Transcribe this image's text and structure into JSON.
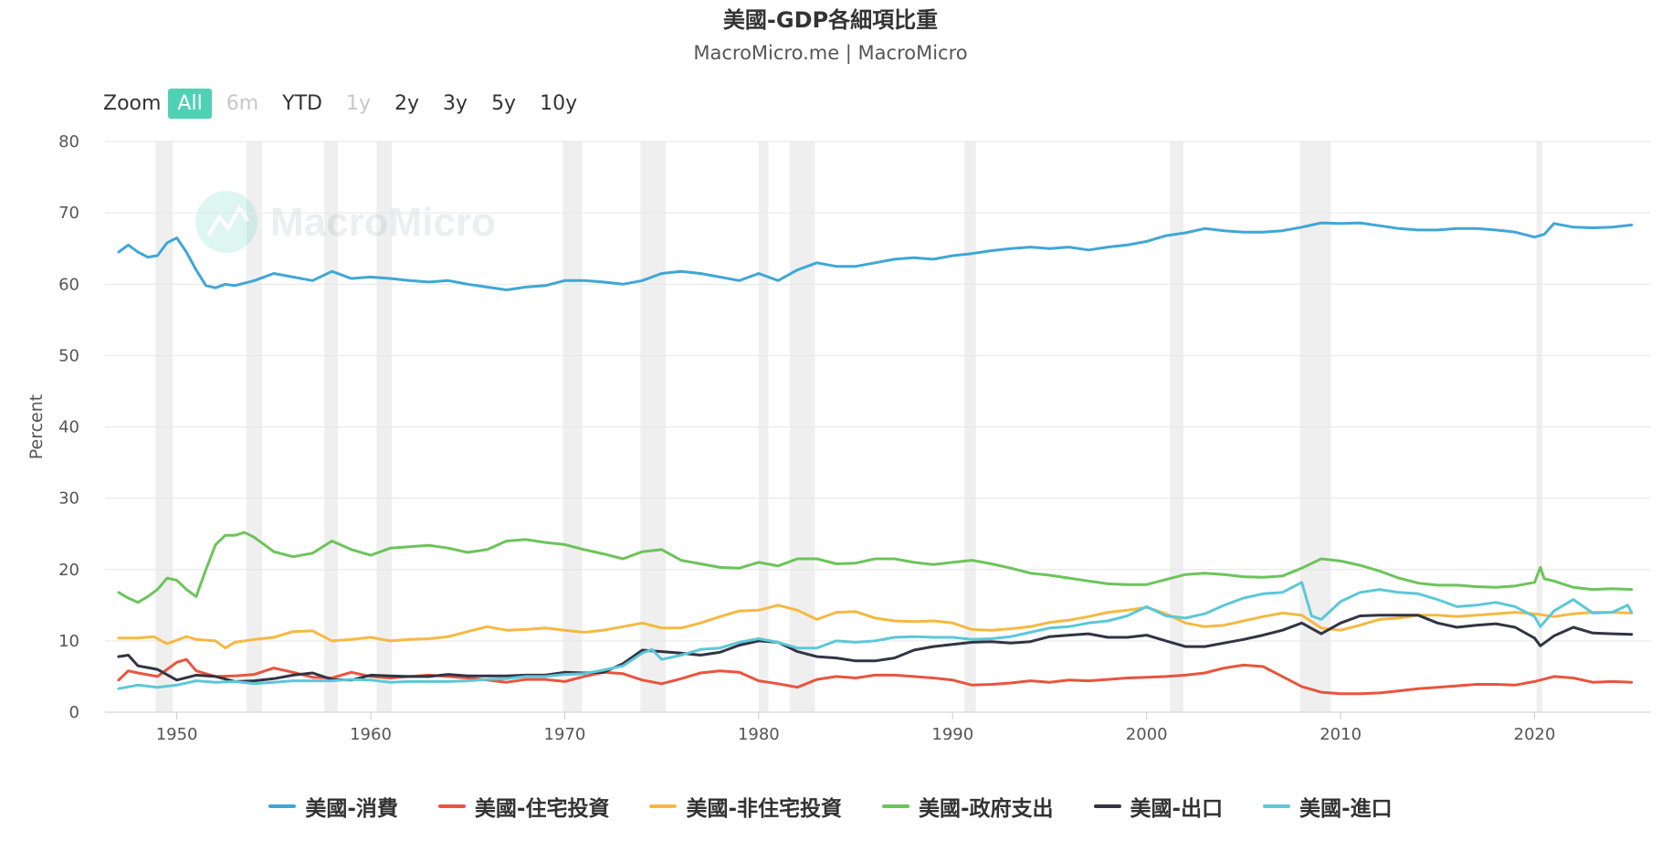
{
  "title": "美國-GDP各細項比重",
  "subtitle": "MacroMicro.me | MacroMicro",
  "watermark": "MacroMicro",
  "zoom": {
    "label": "Zoom",
    "buttons": [
      {
        "label": "All",
        "state": "active"
      },
      {
        "label": "6m",
        "state": "disabled"
      },
      {
        "label": "YTD",
        "state": "normal"
      },
      {
        "label": "1y",
        "state": "disabled"
      },
      {
        "label": "2y",
        "state": "normal"
      },
      {
        "label": "3y",
        "state": "normal"
      },
      {
        "label": "5y",
        "state": "normal"
      },
      {
        "label": "10y",
        "state": "normal"
      }
    ]
  },
  "chart_data": {
    "type": "line",
    "ylabel": "Percent",
    "xlim": [
      1946.3,
      2026.0
    ],
    "ylim": [
      0,
      80
    ],
    "y_ticks": [
      0,
      10,
      20,
      30,
      40,
      50,
      60,
      70,
      80
    ],
    "x_ticks": [
      1950,
      1960,
      1970,
      1980,
      1990,
      2000,
      2010,
      2020
    ],
    "grid": true,
    "legend": "bottom",
    "recessions": [
      [
        1948.9,
        1949.8
      ],
      [
        1953.6,
        1954.4
      ],
      [
        1957.6,
        1958.3
      ],
      [
        1960.3,
        1961.1
      ],
      [
        1969.9,
        1970.9
      ],
      [
        1973.9,
        1975.2
      ],
      [
        1980.0,
        1980.5
      ],
      [
        1981.6,
        1982.9
      ],
      [
        1990.6,
        1991.2
      ],
      [
        2001.2,
        2001.9
      ],
      [
        2007.9,
        2009.5
      ],
      [
        2020.1,
        2020.4
      ]
    ],
    "series": [
      {
        "name": "美國-消費",
        "color": "#3fa7d6",
        "x": [
          1947,
          1947.5,
          1948,
          1948.5,
          1949,
          1949.5,
          1950,
          1950.5,
          1951,
          1951.5,
          1952,
          1952.5,
          1953,
          1954,
          1955,
          1957,
          1958,
          1959,
          1960,
          1961,
          1962,
          1963,
          1964,
          1965,
          1966,
          1967,
          1968,
          1969,
          1970,
          1971,
          1972,
          1973,
          1974,
          1975,
          1976,
          1977,
          1978,
          1979,
          1980,
          1981,
          1982,
          1983,
          1984,
          1985,
          1986,
          1987,
          1988,
          1989,
          1990,
          1991,
          1992,
          1993,
          1994,
          1995,
          1996,
          1997,
          1998,
          1999,
          2000,
          2001,
          2002,
          2003,
          2004,
          2005,
          2006,
          2007,
          2008,
          2009,
          2010,
          2011,
          2012,
          2013,
          2014,
          2015,
          2016,
          2017,
          2018,
          2019,
          2020,
          2020.5,
          2021,
          2022,
          2023,
          2024,
          2025
        ],
        "y": [
          64.5,
          65.5,
          64.5,
          63.8,
          64.0,
          65.8,
          66.5,
          64.5,
          62.0,
          59.8,
          59.5,
          60.0,
          59.8,
          60.5,
          61.5,
          60.5,
          61.8,
          60.8,
          61.0,
          60.8,
          60.5,
          60.3,
          60.5,
          60.0,
          59.6,
          59.2,
          59.6,
          59.8,
          60.5,
          60.5,
          60.3,
          60.0,
          60.5,
          61.5,
          61.8,
          61.5,
          61.0,
          60.5,
          61.5,
          60.5,
          62.0,
          63.0,
          62.5,
          62.5,
          63.0,
          63.5,
          63.7,
          63.5,
          64.0,
          64.3,
          64.7,
          65.0,
          65.2,
          65.0,
          65.2,
          64.8,
          65.2,
          65.5,
          66.0,
          66.8,
          67.2,
          67.8,
          67.5,
          67.3,
          67.3,
          67.5,
          68.0,
          68.6,
          68.5,
          68.6,
          68.2,
          67.8,
          67.6,
          67.6,
          67.8,
          67.8,
          67.6,
          67.3,
          66.6,
          67.0,
          68.5,
          68.0,
          67.9,
          68.0,
          68.3
        ]
      },
      {
        "name": "美國-住宅投資",
        "color": "#e8553e",
        "x": [
          1947,
          1947.5,
          1948,
          1949,
          1950,
          1950.5,
          1951,
          1952,
          1953,
          1954,
          1955,
          1956,
          1957,
          1958,
          1959,
          1960,
          1961,
          1962,
          1963,
          1964,
          1965,
          1966,
          1967,
          1968,
          1969,
          1970,
          1971,
          1972,
          1973,
          1974,
          1975,
          1976,
          1977,
          1978,
          1979,
          1980,
          1981,
          1982,
          1983,
          1984,
          1985,
          1986,
          1987,
          1988,
          1989,
          1990,
          1991,
          1992,
          1993,
          1994,
          1995,
          1996,
          1997,
          1998,
          1999,
          2000,
          2001,
          2002,
          2003,
          2004,
          2005,
          2006,
          2007,
          2008,
          2009,
          2010,
          2011,
          2012,
          2013,
          2014,
          2015,
          2016,
          2017,
          2018,
          2019,
          2020,
          2021,
          2022,
          2023,
          2024,
          2025
        ],
        "y": [
          4.5,
          5.8,
          5.5,
          5.0,
          7.0,
          7.4,
          5.8,
          5.0,
          5.1,
          5.3,
          6.2,
          5.6,
          4.9,
          4.8,
          5.6,
          5.0,
          4.8,
          5.0,
          5.2,
          5.0,
          4.8,
          4.5,
          4.2,
          4.6,
          4.6,
          4.3,
          5.0,
          5.6,
          5.4,
          4.5,
          4.0,
          4.7,
          5.5,
          5.8,
          5.6,
          4.4,
          4.0,
          3.5,
          4.6,
          5.0,
          4.8,
          5.2,
          5.2,
          5.0,
          4.8,
          4.5,
          3.8,
          3.9,
          4.1,
          4.4,
          4.2,
          4.5,
          4.4,
          4.6,
          4.8,
          4.9,
          5.0,
          5.2,
          5.5,
          6.2,
          6.6,
          6.4,
          5.0,
          3.6,
          2.8,
          2.6,
          2.6,
          2.7,
          3.0,
          3.3,
          3.5,
          3.7,
          3.9,
          3.9,
          3.8,
          4.3,
          5.0,
          4.8,
          4.2,
          4.3,
          4.2
        ]
      },
      {
        "name": "美國-非住宅投資",
        "color": "#f5b942",
        "x": [
          1947,
          1948,
          1948.8,
          1949.5,
          1950.5,
          1951,
          1952,
          1952.5,
          1953,
          1954,
          1955,
          1956,
          1957,
          1958,
          1959,
          1960,
          1961,
          1962,
          1963,
          1964,
          1965,
          1966,
          1967,
          1968,
          1969,
          1970,
          1971,
          1972,
          1973,
          1974,
          1975,
          1976,
          1977,
          1978,
          1979,
          1980,
          1981,
          1982,
          1983,
          1984,
          1985,
          1986,
          1987,
          1988,
          1989,
          1990,
          1991,
          1992,
          1993,
          1994,
          1995,
          1996,
          1997,
          1998,
          1999,
          2000,
          2001,
          2002,
          2003,
          2004,
          2005,
          2006,
          2007,
          2008,
          2009,
          2010,
          2011,
          2012,
          2013,
          2014,
          2015,
          2016,
          2017,
          2018,
          2019,
          2020,
          2021,
          2022,
          2023,
          2024,
          2025
        ],
        "y": [
          10.4,
          10.4,
          10.6,
          9.6,
          10.6,
          10.2,
          10.0,
          9.0,
          9.8,
          10.2,
          10.5,
          11.3,
          11.4,
          10.0,
          10.2,
          10.5,
          10.0,
          10.2,
          10.3,
          10.6,
          11.3,
          12.0,
          11.5,
          11.6,
          11.8,
          11.5,
          11.2,
          11.5,
          12.0,
          12.5,
          11.8,
          11.8,
          12.5,
          13.4,
          14.2,
          14.3,
          15.0,
          14.3,
          13.0,
          14.0,
          14.1,
          13.2,
          12.8,
          12.7,
          12.8,
          12.5,
          11.6,
          11.5,
          11.7,
          12.0,
          12.6,
          12.9,
          13.4,
          14.0,
          14.3,
          14.7,
          13.8,
          12.5,
          12.0,
          12.2,
          12.8,
          13.4,
          13.9,
          13.6,
          11.8,
          11.5,
          12.2,
          13.0,
          13.2,
          13.6,
          13.6,
          13.4,
          13.6,
          13.8,
          14.0,
          13.8,
          13.4,
          13.8,
          14.0,
          14.0,
          13.9
        ]
      },
      {
        "name": "美國-政府支出",
        "color": "#6cc45a",
        "x": [
          1947,
          1947.5,
          1948,
          1948.5,
          1949,
          1949.5,
          1950,
          1950.5,
          1951,
          1951.5,
          1952,
          1952.5,
          1953,
          1953.5,
          1954,
          1955,
          1956,
          1957,
          1958,
          1959,
          1960,
          1961,
          1962,
          1963,
          1964,
          1965,
          1966,
          1967,
          1968,
          1969,
          1970,
          1971,
          1972,
          1973,
          1974,
          1975,
          1976,
          1977,
          1978,
          1979,
          1980,
          1981,
          1982,
          1983,
          1984,
          1985,
          1986,
          1987,
          1988,
          1989,
          1990,
          1991,
          1992,
          1993,
          1994,
          1995,
          1996,
          1997,
          1998,
          1999,
          2000,
          2001,
          2002,
          2003,
          2004,
          2005,
          2006,
          2007,
          2008,
          2009,
          2010,
          2011,
          2012,
          2013,
          2014,
          2015,
          2016,
          2017,
          2018,
          2019,
          2020,
          2020.3,
          2020.5,
          2021,
          2022,
          2023,
          2024,
          2025
        ],
        "y": [
          16.8,
          16.0,
          15.4,
          16.2,
          17.2,
          18.8,
          18.5,
          17.2,
          16.2,
          20.0,
          23.5,
          24.8,
          24.8,
          25.2,
          24.5,
          22.5,
          21.8,
          22.3,
          24.0,
          22.8,
          22.0,
          23.0,
          23.2,
          23.4,
          23.0,
          22.4,
          22.8,
          24.0,
          24.2,
          23.8,
          23.5,
          22.8,
          22.2,
          21.5,
          22.5,
          22.8,
          21.3,
          20.8,
          20.3,
          20.2,
          21.0,
          20.5,
          21.5,
          21.5,
          20.8,
          20.9,
          21.5,
          21.5,
          21.0,
          20.7,
          21.0,
          21.3,
          20.8,
          20.2,
          19.5,
          19.2,
          18.8,
          18.4,
          18.0,
          17.9,
          17.9,
          18.6,
          19.3,
          19.5,
          19.3,
          19.0,
          18.9,
          19.1,
          20.2,
          21.5,
          21.2,
          20.6,
          19.8,
          18.8,
          18.1,
          17.8,
          17.8,
          17.6,
          17.5,
          17.7,
          18.2,
          20.3,
          18.7,
          18.4,
          17.5,
          17.2,
          17.3,
          17.2
        ]
      },
      {
        "name": "美國-出口",
        "color": "#333344",
        "x": [
          1947,
          1947.5,
          1948,
          1949,
          1950,
          1951,
          1952,
          1953,
          1954,
          1955,
          1956,
          1957,
          1958,
          1959,
          1960,
          1961,
          1962,
          1963,
          1964,
          1965,
          1966,
          1967,
          1968,
          1969,
          1970,
          1971,
          1972,
          1973,
          1974,
          1975,
          1976,
          1977,
          1978,
          1979,
          1980,
          1981,
          1982,
          1983,
          1984,
          1985,
          1986,
          1987,
          1988,
          1989,
          1990,
          1991,
          1992,
          1993,
          1994,
          1995,
          1996,
          1997,
          1998,
          1999,
          2000,
          2001,
          2002,
          2003,
          2004,
          2005,
          2006,
          2007,
          2008,
          2009,
          2010,
          2011,
          2012,
          2013,
          2014,
          2015,
          2016,
          2017,
          2018,
          2019,
          2020,
          2020.3,
          2021,
          2022,
          2023,
          2024,
          2025
        ],
        "y": [
          7.8,
          8.0,
          6.5,
          6.0,
          4.5,
          5.2,
          5.0,
          4.3,
          4.4,
          4.7,
          5.2,
          5.5,
          4.6,
          4.5,
          5.2,
          5.1,
          5.0,
          5.0,
          5.3,
          5.1,
          5.1,
          5.1,
          5.2,
          5.2,
          5.6,
          5.5,
          5.6,
          6.8,
          8.7,
          8.5,
          8.3,
          8.0,
          8.4,
          9.4,
          10.0,
          9.8,
          8.5,
          7.8,
          7.6,
          7.2,
          7.2,
          7.6,
          8.7,
          9.2,
          9.5,
          9.8,
          9.9,
          9.7,
          9.9,
          10.6,
          10.8,
          11.0,
          10.5,
          10.5,
          10.8,
          10.0,
          9.2,
          9.2,
          9.7,
          10.2,
          10.8,
          11.5,
          12.5,
          11.0,
          12.5,
          13.5,
          13.6,
          13.6,
          13.6,
          12.5,
          11.9,
          12.2,
          12.4,
          11.9,
          10.4,
          9.3,
          10.7,
          11.9,
          11.1,
          11.0,
          10.9
        ]
      },
      {
        "name": "美國-進口",
        "color": "#5bc8d8",
        "x": [
          1947,
          1948,
          1949,
          1950,
          1951,
          1952,
          1953,
          1954,
          1955,
          1956,
          1957,
          1958,
          1959,
          1960,
          1961,
          1962,
          1963,
          1964,
          1965,
          1966,
          1967,
          1968,
          1969,
          1970,
          1971,
          1972,
          1973,
          1974,
          1974.5,
          1975,
          1976,
          1977,
          1978,
          1979,
          1980,
          1981,
          1982,
          1983,
          1984,
          1985,
          1986,
          1987,
          1988,
          1989,
          1990,
          1991,
          1992,
          1993,
          1994,
          1995,
          1996,
          1997,
          1998,
          1999,
          2000,
          2001,
          2002,
          2003,
          2004,
          2005,
          2006,
          2007,
          2008,
          2008.5,
          2009,
          2010,
          2011,
          2012,
          2013,
          2014,
          2015,
          2016,
          2017,
          2018,
          2019,
          2020,
          2020.3,
          2021,
          2022,
          2023,
          2024,
          2024.8,
          2025
        ],
        "y": [
          3.3,
          3.8,
          3.5,
          3.8,
          4.4,
          4.2,
          4.3,
          4.0,
          4.2,
          4.4,
          4.4,
          4.4,
          4.6,
          4.5,
          4.2,
          4.3,
          4.3,
          4.3,
          4.4,
          4.6,
          4.7,
          5.0,
          5.0,
          5.3,
          5.4,
          5.9,
          6.5,
          8.3,
          8.8,
          7.4,
          8.0,
          8.8,
          9.0,
          9.8,
          10.3,
          9.8,
          9.0,
          9.0,
          10.0,
          9.8,
          10.0,
          10.5,
          10.6,
          10.5,
          10.5,
          10.2,
          10.3,
          10.6,
          11.2,
          11.8,
          12.0,
          12.5,
          12.8,
          13.5,
          14.8,
          13.5,
          13.2,
          13.8,
          15.0,
          16.0,
          16.6,
          16.8,
          18.2,
          13.5,
          13.0,
          15.5,
          16.8,
          17.2,
          16.8,
          16.6,
          15.8,
          14.8,
          15.0,
          15.4,
          14.8,
          13.4,
          12.0,
          14.2,
          15.8,
          13.9,
          14.0,
          15.0,
          14.0
        ]
      }
    ]
  }
}
